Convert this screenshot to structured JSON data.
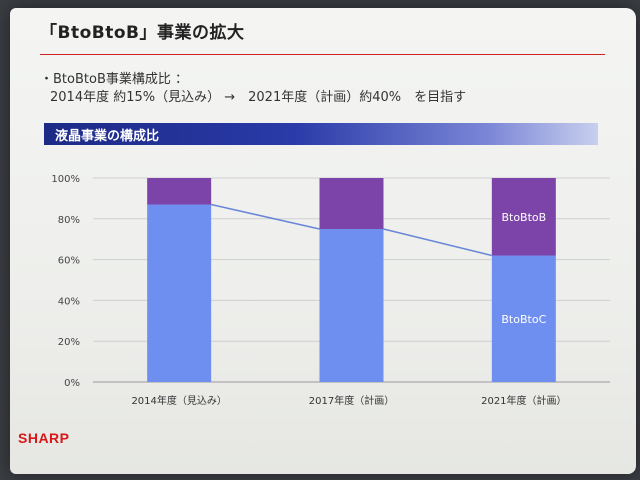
{
  "slide": {
    "title": "「BtoBtoB」事業の拡大",
    "bullet_line1": "・BtoBtoB事業構成比 ：",
    "bullet_line2": "2014年度 約15%（見込み） →　2021年度（計画）約40%　を目指す",
    "section_title": "液晶事業の構成比",
    "logo": "SHARP"
  },
  "colors": {
    "btoc": "#6e8ff0",
    "btob": "#7c44a8",
    "line": "#6a86d8",
    "accent_red": "#cc2222",
    "section_bar": "#1c2a86"
  },
  "chart_data": {
    "type": "bar",
    "stacked": true,
    "categories": [
      "2014年度（見込み）",
      "2017年度（計画）",
      "2021年度（計画）"
    ],
    "series": [
      {
        "name": "BtoBtoC",
        "values": [
          87,
          75,
          62
        ],
        "color": "#6e8ff0"
      },
      {
        "name": "BtoBtoB",
        "values": [
          13,
          25,
          38
        ],
        "color": "#7c44a8"
      }
    ],
    "connector_line": true,
    "ylim": [
      0,
      100
    ],
    "yticks": [
      "0%",
      "20%",
      "40%",
      "60%",
      "80%",
      "100%"
    ],
    "grid": true
  }
}
